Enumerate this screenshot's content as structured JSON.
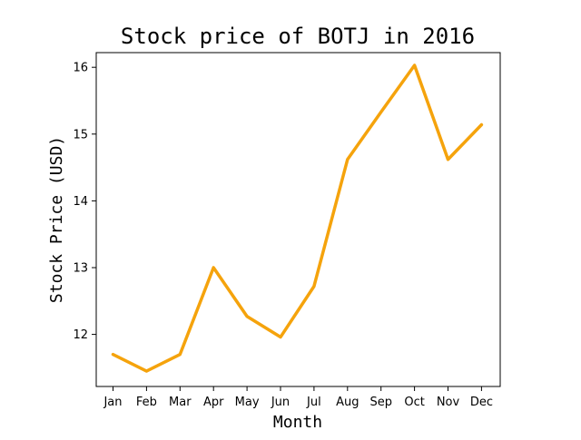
{
  "chart_data": {
    "type": "line",
    "title": "Stock price of BOTJ in 2016",
    "xlabel": "Month",
    "ylabel": "Stock Price (USD)",
    "categories": [
      "Jan",
      "Feb",
      "Mar",
      "Apr",
      "May",
      "Jun",
      "Jul",
      "Aug",
      "Sep",
      "Oct",
      "Nov",
      "Dec"
    ],
    "series": [
      {
        "values": [
          11.7,
          11.45,
          11.7,
          13.0,
          12.27,
          11.96,
          12.72,
          14.62,
          15.33,
          16.03,
          14.62,
          15.14
        ],
        "color": "#f5a30c"
      }
    ],
    "ylim": [
      11.22,
      16.22
    ],
    "yticks": [
      12,
      13,
      14,
      15,
      16
    ],
    "grid": false,
    "legend": false
  }
}
